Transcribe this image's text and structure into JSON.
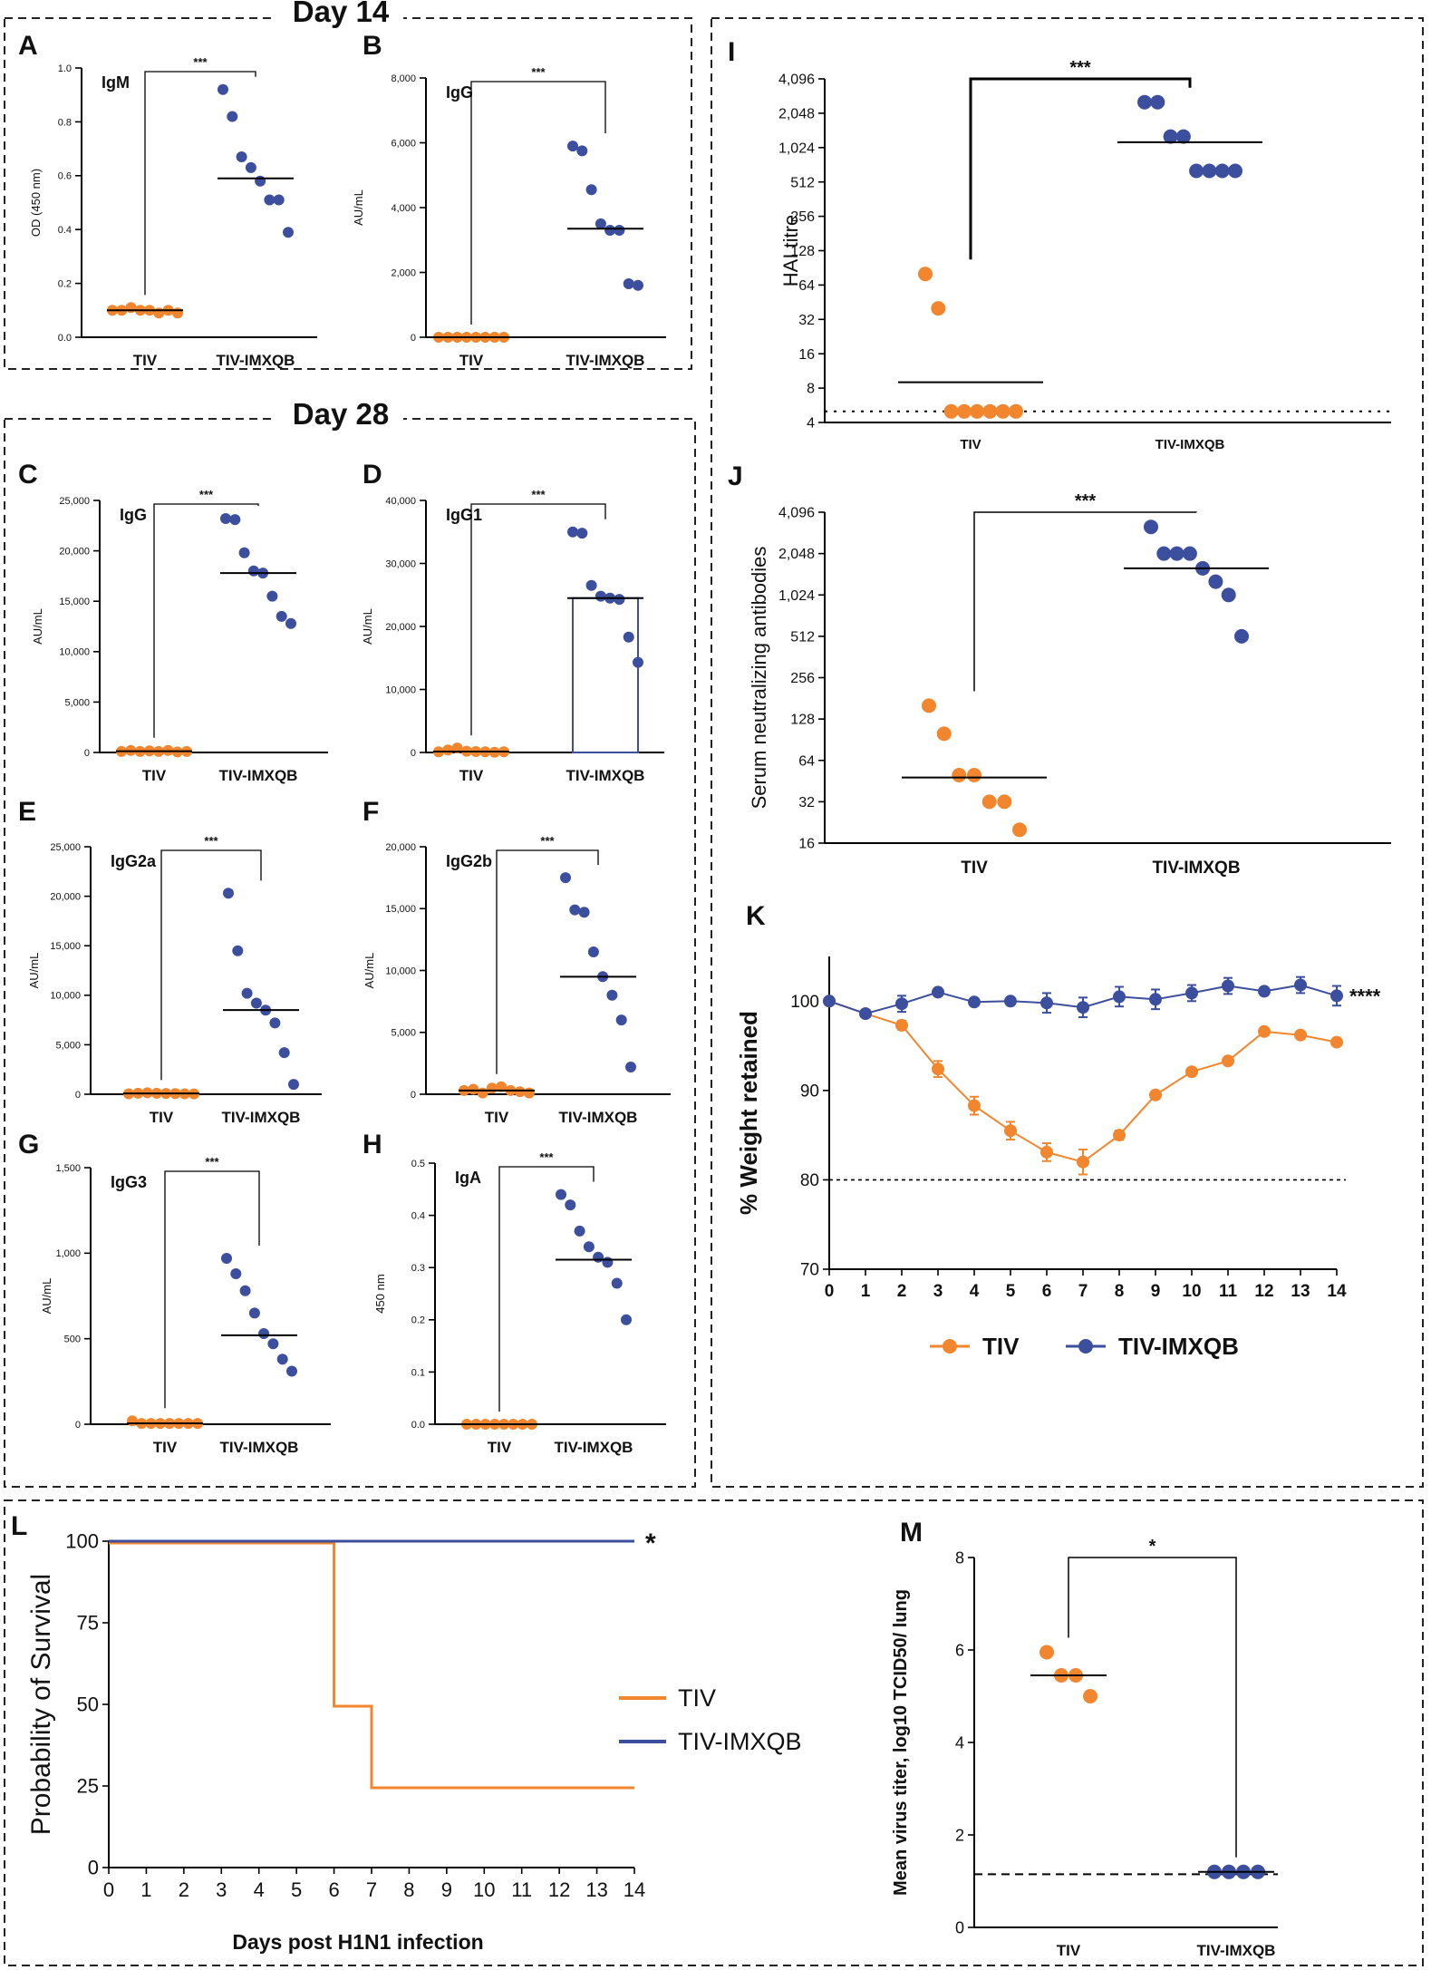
{
  "section_titles": {
    "day14": "Day 14",
    "day28": "Day 28"
  },
  "colors": {
    "tiv": "#F2862E",
    "imx": "#3C4E9E",
    "axis": "#000000",
    "frame": "#222222"
  },
  "legend": {
    "tiv": "TIV",
    "imx": "TIV-IMXQB"
  },
  "chart_data": [
    {
      "id": "A",
      "type": "scatter",
      "label": "A",
      "title": "IgM",
      "ylabel": "OD (450 nm)",
      "scale": "linear",
      "ylim": [
        0,
        1.0
      ],
      "yticks": [
        0,
        0.2,
        0.4,
        0.6,
        0.8,
        1.0
      ],
      "ytick_labels": [
        "0.0",
        "0.2",
        "0.4",
        "0.6",
        "0.8",
        "1.0"
      ],
      "categories": [
        "TIV",
        "TIV-IMXQB"
      ],
      "significance": "***",
      "series": [
        {
          "name": "TIV",
          "values": [
            0.1,
            0.1,
            0.11,
            0.1,
            0.1,
            0.09,
            0.1,
            0.09
          ],
          "median": 0.1
        },
        {
          "name": "TIV-IMXQB",
          "values": [
            0.92,
            0.82,
            0.67,
            0.63,
            0.58,
            0.51,
            0.51,
            0.39
          ],
          "median": 0.59
        }
      ]
    },
    {
      "id": "B",
      "type": "scatter",
      "label": "B",
      "title": "IgG",
      "ylabel": "AU/mL",
      "scale": "linear",
      "ylim": [
        0,
        8000
      ],
      "yticks": [
        0,
        2000,
        4000,
        6000,
        8000
      ],
      "ytick_labels": [
        "0",
        "2,000",
        "4,000",
        "6,000",
        "8,000"
      ],
      "categories": [
        "TIV",
        "TIV-IMXQB"
      ],
      "significance": "***",
      "series": [
        {
          "name": "TIV",
          "values": [
            0,
            0,
            0,
            0,
            0,
            0,
            0,
            0
          ],
          "median": 0
        },
        {
          "name": "TIV-IMXQB",
          "values": [
            5900,
            5750,
            4550,
            3500,
            3300,
            3300,
            1650,
            1600
          ],
          "median": 3350
        }
      ]
    },
    {
      "id": "C",
      "type": "scatter",
      "label": "C",
      "title": "IgG",
      "ylabel": "AU/mL",
      "scale": "linear",
      "ylim": [
        0,
        25000
      ],
      "yticks": [
        0,
        5000,
        10000,
        15000,
        20000,
        25000
      ],
      "ytick_labels": [
        "0",
        "5,000",
        "10,000",
        "15,000",
        "20,000",
        "25,000"
      ],
      "categories": [
        "TIV",
        "TIV-IMXQB"
      ],
      "significance": "***",
      "series": [
        {
          "name": "TIV",
          "values": [
            100,
            200,
            100,
            150,
            100,
            200,
            50,
            100
          ],
          "median": 120
        },
        {
          "name": "TIV-IMXQB",
          "values": [
            23200,
            23100,
            19800,
            18000,
            17800,
            15500,
            13500,
            12800
          ],
          "median": 17800
        }
      ]
    },
    {
      "id": "D",
      "type": "bar-scatter",
      "label": "D",
      "title": "IgG1",
      "ylabel": "AU/mL",
      "scale": "linear",
      "ylim": [
        0,
        40000
      ],
      "yticks": [
        0,
        10000,
        20000,
        30000,
        40000
      ],
      "ytick_labels": [
        "0",
        "10,000",
        "20,000",
        "30,000",
        "40,000"
      ],
      "categories": [
        "TIV",
        "TIV-IMXQB"
      ],
      "significance": "***",
      "bar_value": 24500,
      "series": [
        {
          "name": "TIV",
          "values": [
            100,
            400,
            700,
            200,
            150,
            100,
            50,
            100
          ],
          "median": 150
        },
        {
          "name": "TIV-IMXQB",
          "values": [
            35000,
            34800,
            26500,
            24800,
            24500,
            24300,
            18300,
            14300
          ],
          "median": 24500
        }
      ]
    },
    {
      "id": "E",
      "type": "scatter",
      "label": "E",
      "title": "IgG2a",
      "ylabel": "AU/mL",
      "scale": "linear",
      "ylim": [
        0,
        25000
      ],
      "yticks": [
        0,
        5000,
        10000,
        15000,
        20000,
        25000
      ],
      "ytick_labels": [
        "0",
        "5,000",
        "10,000",
        "15,000",
        "20,000",
        "25,000"
      ],
      "categories": [
        "TIV",
        "TIV-IMXQB"
      ],
      "significance": "***",
      "series": [
        {
          "name": "TIV",
          "values": [
            50,
            100,
            150,
            100,
            80,
            60,
            50,
            40
          ],
          "median": 80
        },
        {
          "name": "TIV-IMXQB",
          "values": [
            20300,
            14500,
            10200,
            9200,
            8500,
            7200,
            4200,
            1000
          ],
          "median": 8500
        }
      ]
    },
    {
      "id": "F",
      "type": "scatter",
      "label": "F",
      "title": "IgG2b",
      "ylabel": "AU/mL",
      "scale": "linear",
      "ylim": [
        0,
        20000
      ],
      "yticks": [
        0,
        5000,
        10000,
        15000,
        20000
      ],
      "ytick_labels": [
        "0",
        "5,000",
        "10,000",
        "15,000",
        "20,000"
      ],
      "categories": [
        "TIV",
        "TIV-IMXQB"
      ],
      "significance": "***",
      "series": [
        {
          "name": "TIV",
          "values": [
            300,
            400,
            100,
            500,
            600,
            300,
            200,
            100
          ],
          "median": 300
        },
        {
          "name": "TIV-IMXQB",
          "values": [
            17500,
            14900,
            14700,
            11500,
            9500,
            8000,
            6000,
            2200
          ],
          "median": 9500
        }
      ]
    },
    {
      "id": "G",
      "type": "scatter",
      "label": "G",
      "title": "IgG3",
      "ylabel": "AU/mL",
      "scale": "linear",
      "ylim": [
        0,
        1500
      ],
      "yticks": [
        0,
        500,
        1000,
        1500
      ],
      "ytick_labels": [
        "0",
        "500",
        "1,000",
        "1,500"
      ],
      "categories": [
        "TIV",
        "TIV-IMXQB"
      ],
      "significance": "***",
      "series": [
        {
          "name": "TIV",
          "values": [
            20,
            5,
            5,
            5,
            5,
            5,
            5,
            5
          ],
          "median": 5
        },
        {
          "name": "TIV-IMXQB",
          "values": [
            970,
            880,
            780,
            650,
            530,
            470,
            380,
            310
          ],
          "median": 520
        }
      ]
    },
    {
      "id": "H",
      "type": "scatter",
      "label": "H",
      "title": "IgA",
      "ylabel": "450 nm",
      "scale": "linear",
      "ylim": [
        0,
        0.5
      ],
      "yticks": [
        0,
        0.1,
        0.2,
        0.3,
        0.4,
        0.5
      ],
      "ytick_labels": [
        "0.0",
        "0.1",
        "0.2",
        "0.3",
        "0.4",
        "0.5"
      ],
      "categories": [
        "TIV",
        "TIV-IMXQB"
      ],
      "significance": "***",
      "series": [
        {
          "name": "TIV",
          "values": [
            0,
            0,
            0,
            0,
            0,
            0,
            0,
            0
          ],
          "median": 0
        },
        {
          "name": "TIV-IMXQB",
          "values": [
            0.44,
            0.42,
            0.37,
            0.34,
            0.32,
            0.31,
            0.27,
            0.2
          ],
          "median": 0.315
        }
      ]
    },
    {
      "id": "I",
      "type": "scatter",
      "label": "I",
      "title": "",
      "ylabel": "HAI titre",
      "scale": "log2",
      "ylim": [
        4,
        4096
      ],
      "yticks": [
        4,
        8,
        16,
        32,
        64,
        128,
        256,
        512,
        1024,
        2048,
        4096
      ],
      "ytick_labels": [
        "4",
        "8",
        "16",
        "32",
        "64",
        "128",
        "256",
        "512",
        "1,024",
        "2,048",
        "4,096"
      ],
      "categories": [
        "TIV",
        "TIV-IMXQB"
      ],
      "significance": "***",
      "limit_line": 5,
      "series": [
        {
          "name": "TIV",
          "values": [
            80,
            40,
            5,
            5,
            5,
            5,
            5,
            5
          ],
          "median": 9
        },
        {
          "name": "TIV-IMXQB",
          "values": [
            2560,
            2560,
            1280,
            1280,
            640,
            640,
            640,
            640
          ],
          "median": 1140
        }
      ]
    },
    {
      "id": "J",
      "type": "scatter",
      "label": "J",
      "title": "",
      "ylabel": "Serum neutralizing antibodies",
      "scale": "log2",
      "ylim": [
        16,
        4096
      ],
      "yticks": [
        16,
        32,
        64,
        128,
        256,
        512,
        1024,
        2048,
        4096
      ],
      "ytick_labels": [
        "16",
        "32",
        "64",
        "128",
        "256",
        "512",
        "1,024",
        "2,048",
        "4,096"
      ],
      "categories": [
        "TIV",
        "TIV-IMXQB"
      ],
      "significance": "***",
      "series": [
        {
          "name": "TIV",
          "values": [
            160,
            100,
            50,
            50,
            32,
            32,
            20
          ],
          "median": 48
        },
        {
          "name": "TIV-IMXQB",
          "values": [
            3200,
            2048,
            2048,
            2048,
            1600,
            1280,
            1024,
            512
          ],
          "median": 1600
        }
      ]
    },
    {
      "id": "K",
      "type": "line",
      "label": "K",
      "title": "",
      "ylabel": "% Weight retained",
      "xlabel": "",
      "ylim": [
        70,
        105
      ],
      "yticks": [
        70,
        80,
        90,
        100
      ],
      "ytick_labels": [
        "70",
        "80",
        "90",
        "100"
      ],
      "x": [
        0,
        1,
        2,
        3,
        4,
        5,
        6,
        7,
        8,
        9,
        10,
        11,
        12,
        13,
        14
      ],
      "xtick_labels": [
        "0",
        "1",
        "2",
        "3",
        "4",
        "5",
        "6",
        "7",
        "8",
        "9",
        "10",
        "11",
        "12",
        "13",
        "14"
      ],
      "reference_line": 80,
      "significance": "****",
      "series": [
        {
          "name": "TIV",
          "values": [
            100,
            98.6,
            97.3,
            92.4,
            88.3,
            85.5,
            83.1,
            82.0,
            85.0,
            89.5,
            92.1,
            93.3,
            96.6,
            96.2,
            95.4
          ],
          "errors": [
            0,
            0.4,
            0.5,
            0.9,
            1.0,
            1.0,
            1.0,
            1.4,
            0.5,
            0.4,
            0.4,
            0.4,
            0.4,
            0.4,
            0.4
          ]
        },
        {
          "name": "TIV-IMXQB",
          "values": [
            100,
            98.6,
            99.7,
            101.0,
            99.9,
            100.0,
            99.8,
            99.3,
            100.5,
            100.2,
            100.9,
            101.7,
            101.1,
            101.8,
            100.6
          ],
          "errors": [
            0,
            0.4,
            0.9,
            0.4,
            0.4,
            0.4,
            1.1,
            1.1,
            1.1,
            1.1,
            0.9,
            0.9,
            0.4,
            0.9,
            1.1
          ]
        }
      ]
    },
    {
      "id": "L",
      "type": "line",
      "label": "L",
      "title": "",
      "ylabel": "Probability of Survival",
      "xlabel": "Days post H1N1 infection",
      "ylim": [
        0,
        100
      ],
      "yticks": [
        0,
        25,
        50,
        75,
        100
      ],
      "ytick_labels": [
        "0",
        "25",
        "50",
        "75",
        "100"
      ],
      "x": [
        0,
        1,
        2,
        3,
        4,
        5,
        6,
        7,
        8,
        9,
        10,
        11,
        12,
        13,
        14
      ],
      "xtick_labels": [
        "0",
        "1",
        "2",
        "3",
        "4",
        "5",
        "6",
        "7",
        "8",
        "9",
        "10",
        "11",
        "12",
        "13",
        "14"
      ],
      "significance": "*",
      "series": [
        {
          "name": "TIV",
          "steps": [
            [
              0,
              100
            ],
            [
              6,
              100
            ],
            [
              6,
              50
            ],
            [
              7,
              50
            ],
            [
              7,
              25
            ],
            [
              14,
              25
            ]
          ]
        },
        {
          "name": "TIV-IMXQB",
          "steps": [
            [
              0,
              100
            ],
            [
              14,
              100
            ]
          ]
        }
      ]
    },
    {
      "id": "M",
      "type": "scatter",
      "label": "M",
      "title": "",
      "ylabel": "Mean virus titer, log10 TCID50/ lung",
      "scale": "linear",
      "ylim": [
        0,
        8
      ],
      "yticks": [
        0,
        2,
        4,
        6,
        8
      ],
      "ytick_labels": [
        "0",
        "2",
        "4",
        "6",
        "8"
      ],
      "categories": [
        "TIV",
        "TIV-IMXQB"
      ],
      "significance": "*",
      "limit_line": 1.15,
      "series": [
        {
          "name": "TIV",
          "values": [
            5.95,
            5.45,
            5.45,
            5.0
          ],
          "median": 5.45
        },
        {
          "name": "TIV-IMXQB",
          "values": [
            1.2,
            1.2,
            1.2,
            1.2
          ],
          "median": 1.2
        }
      ]
    }
  ]
}
